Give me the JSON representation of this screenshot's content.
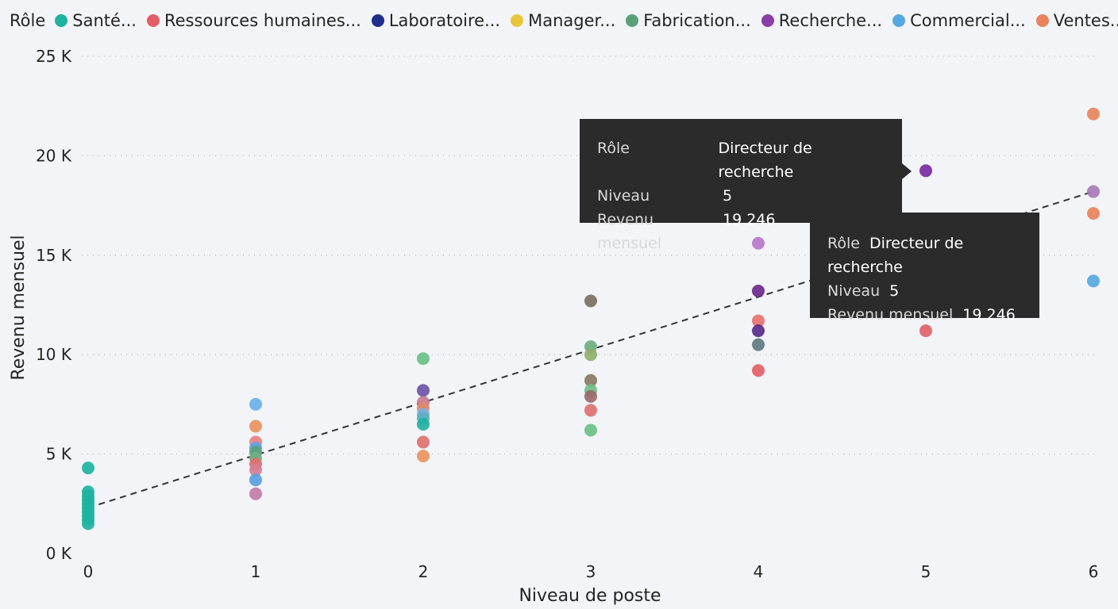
{
  "legend": {
    "title": "Rôle",
    "items": [
      {
        "label": "Santé...",
        "color": "#20b2a0"
      },
      {
        "label": "Ressources humaines...",
        "color": "#e35d66"
      },
      {
        "label": "Laboratoire...",
        "color": "#1f2d8c"
      },
      {
        "label": "Manager...",
        "color": "#e8c63b"
      },
      {
        "label": "Fabrication...",
        "color": "#5aa17a"
      },
      {
        "label": "Recherche...",
        "color": "#8a3ea6"
      },
      {
        "label": "Commercial...",
        "color": "#56a8e0"
      },
      {
        "label": "Ventes...",
        "color": "#e8835c"
      }
    ]
  },
  "tooltip_main": {
    "role_label": "Rôle",
    "role_value": "Directeur de recherche",
    "level_label": "Niveau",
    "level_value": "5",
    "income_label": "Revenu mensuel",
    "income_value": "19 246"
  },
  "tooltip_second": {
    "role_label": "Rôle",
    "role_value": "Directeur de recherche",
    "level_label": "Niveau",
    "level_value": "5",
    "income_label": "Revenu mensuel",
    "income_value": "19 246"
  },
  "chart_data": {
    "type": "scatter",
    "xlabel": "Niveau de poste",
    "ylabel": "Revenu mensuel",
    "xlim": [
      0,
      6
    ],
    "ylim": [
      0,
      25000
    ],
    "x_ticks": [
      "0",
      "1",
      "2",
      "3",
      "4",
      "5",
      "6"
    ],
    "y_ticks": [
      {
        "value": 0,
        "label": "0 K"
      },
      {
        "value": 5000,
        "label": "5 K"
      },
      {
        "value": 10000,
        "label": "10 K"
      },
      {
        "value": 15000,
        "label": "15 K"
      },
      {
        "value": 20000,
        "label": "20 K"
      },
      {
        "value": 25000,
        "label": "25 K"
      }
    ],
    "grid": true,
    "legend_position": "top-left",
    "trend_line": {
      "x": [
        0,
        6
      ],
      "y": [
        2300,
        18200
      ],
      "style": "dashed"
    },
    "points": [
      {
        "x": 0,
        "y": 4300,
        "color": "#20b2a0"
      },
      {
        "x": 0,
        "y": 3100,
        "color": "#20b2a0"
      },
      {
        "x": 0,
        "y": 2900,
        "color": "#20b2a0"
      },
      {
        "x": 0,
        "y": 2700,
        "color": "#20b2a0"
      },
      {
        "x": 0,
        "y": 2500,
        "color": "#20b2a0"
      },
      {
        "x": 0,
        "y": 2300,
        "color": "#20b2a0"
      },
      {
        "x": 0,
        "y": 2100,
        "color": "#20b2a0"
      },
      {
        "x": 0,
        "y": 1900,
        "color": "#20b2a0"
      },
      {
        "x": 0,
        "y": 1700,
        "color": "#20b2a0"
      },
      {
        "x": 0,
        "y": 1500,
        "color": "#20b2a0"
      },
      {
        "x": 1,
        "y": 7500,
        "color": "#6ab0e8"
      },
      {
        "x": 1,
        "y": 6400,
        "color": "#e8935f"
      },
      {
        "x": 1,
        "y": 5600,
        "color": "#e88080"
      },
      {
        "x": 1,
        "y": 5300,
        "color": "#5aa5e6"
      },
      {
        "x": 1,
        "y": 5100,
        "color": "#5aa17a"
      },
      {
        "x": 1,
        "y": 4800,
        "color": "#6fae83"
      },
      {
        "x": 1,
        "y": 4500,
        "color": "#e07070"
      },
      {
        "x": 1,
        "y": 4200,
        "color": "#d77d96"
      },
      {
        "x": 1,
        "y": 3700,
        "color": "#5a9ee0"
      },
      {
        "x": 1,
        "y": 3000,
        "color": "#c27aa8"
      },
      {
        "x": 2,
        "y": 9800,
        "color": "#6bbf86"
      },
      {
        "x": 2,
        "y": 8200,
        "color": "#6a54a8"
      },
      {
        "x": 2,
        "y": 7600,
        "color": "#c77890"
      },
      {
        "x": 2,
        "y": 7300,
        "color": "#e08a6a"
      },
      {
        "x": 2,
        "y": 7000,
        "color": "#7ab0e0"
      },
      {
        "x": 2,
        "y": 6800,
        "color": "#5ab0c0"
      },
      {
        "x": 2,
        "y": 6500,
        "color": "#20b2a0"
      },
      {
        "x": 2,
        "y": 5600,
        "color": "#e07070"
      },
      {
        "x": 2,
        "y": 4900,
        "color": "#e8935f"
      },
      {
        "x": 3,
        "y": 12700,
        "color": "#7a7060"
      },
      {
        "x": 3,
        "y": 10400,
        "color": "#6fae83"
      },
      {
        "x": 3,
        "y": 10000,
        "color": "#8fb06a"
      },
      {
        "x": 3,
        "y": 8700,
        "color": "#8a7a60"
      },
      {
        "x": 3,
        "y": 8200,
        "color": "#6fbf86"
      },
      {
        "x": 3,
        "y": 7900,
        "color": "#9a6a6a"
      },
      {
        "x": 3,
        "y": 7200,
        "color": "#e07070"
      },
      {
        "x": 3,
        "y": 6200,
        "color": "#6bbf86"
      },
      {
        "x": 4,
        "y": 15600,
        "color": "#b678c8"
      },
      {
        "x": 4,
        "y": 13200,
        "color": "#6a2a8c"
      },
      {
        "x": 4,
        "y": 11700,
        "color": "#e87070"
      },
      {
        "x": 4,
        "y": 11200,
        "color": "#5a2a8c"
      },
      {
        "x": 4,
        "y": 10500,
        "color": "#607a80"
      },
      {
        "x": 4,
        "y": 9200,
        "color": "#e36068"
      },
      {
        "x": 5,
        "y": 19246,
        "color": "#7a2aa0"
      },
      {
        "x": 5,
        "y": 11200,
        "color": "#e36068"
      },
      {
        "x": 6,
        "y": 22100,
        "color": "#e8835c"
      },
      {
        "x": 6,
        "y": 18200,
        "color": "#a87ab8"
      },
      {
        "x": 6,
        "y": 17100,
        "color": "#e8835c"
      },
      {
        "x": 6,
        "y": 13700,
        "color": "#56a8e0"
      }
    ]
  }
}
